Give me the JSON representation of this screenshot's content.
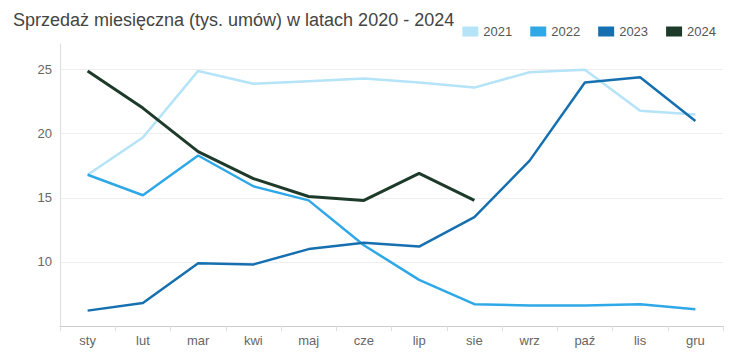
{
  "chart_data": {
    "type": "line",
    "title": "Sprzedaż miesięczna (tys. umów) w latach 2020 - 2024",
    "categories": [
      "sty",
      "lut",
      "mar",
      "kwi",
      "maj",
      "cze",
      "lip",
      "sie",
      "wrz",
      "paź",
      "lis",
      "gru"
    ],
    "series": [
      {
        "name": "2021",
        "color": "#b5e3f7",
        "values": [
          16.8,
          19.7,
          24.9,
          23.9,
          24.1,
          24.3,
          24.0,
          23.6,
          24.8,
          25.0,
          21.8,
          21.5
        ]
      },
      {
        "name": "2022",
        "color": "#2fa8e8",
        "values": [
          16.8,
          15.2,
          18.3,
          15.9,
          14.8,
          11.3,
          8.6,
          6.7,
          6.6,
          6.6,
          6.7,
          6.3
        ]
      },
      {
        "name": "2023",
        "color": "#1670b0",
        "values": [
          6.2,
          6.8,
          9.9,
          9.8,
          11.0,
          11.5,
          11.2,
          13.5,
          17.9,
          24.0,
          24.4,
          21.0
        ]
      },
      {
        "name": "2024",
        "color": "#1e3a2a",
        "values": [
          24.9,
          22.0,
          18.6,
          16.5,
          15.1,
          14.8,
          16.9,
          14.8,
          null,
          null,
          null,
          null
        ]
      }
    ],
    "ylim": [
      5,
      27
    ],
    "yticks": [
      10,
      15,
      20,
      25
    ],
    "grid": true,
    "legend": "top-right"
  }
}
